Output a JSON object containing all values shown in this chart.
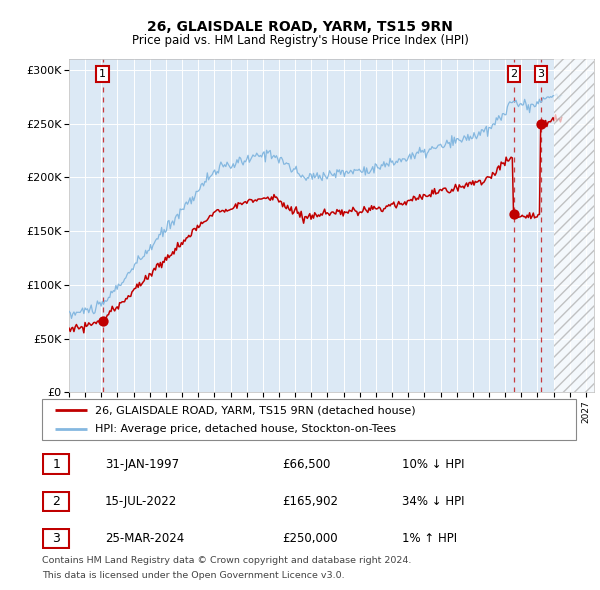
{
  "title1": "26, GLAISDALE ROAD, YARM, TS15 9RN",
  "title2": "Price paid vs. HM Land Registry's House Price Index (HPI)",
  "bg_color": "#dce9f5",
  "hpi_color": "#85b8e0",
  "price_color": "#c00000",
  "sale1_date": 1997.08,
  "sale1_price": 66500,
  "sale2_date": 2022.54,
  "sale2_price": 165902,
  "sale3_date": 2024.23,
  "sale3_price": 250000,
  "hatch_start": 2025.0,
  "xmin": 1995.0,
  "xmax": 2027.5,
  "ymin": 0,
  "ymax": 310000,
  "legend_line1": "26, GLAISDALE ROAD, YARM, TS15 9RN (detached house)",
  "legend_line2": "HPI: Average price, detached house, Stockton-on-Tees",
  "table": [
    {
      "num": "1",
      "date": "31-JAN-1997",
      "price": "£66,500",
      "hpi": "10% ↓ HPI"
    },
    {
      "num": "2",
      "date": "15-JUL-2022",
      "price": "£165,902",
      "hpi": "34% ↓ HPI"
    },
    {
      "num": "3",
      "date": "25-MAR-2024",
      "price": "£250,000",
      "hpi": "1% ↑ HPI"
    }
  ],
  "footnote1": "Contains HM Land Registry data © Crown copyright and database right 2024.",
  "footnote2": "This data is licensed under the Open Government Licence v3.0."
}
